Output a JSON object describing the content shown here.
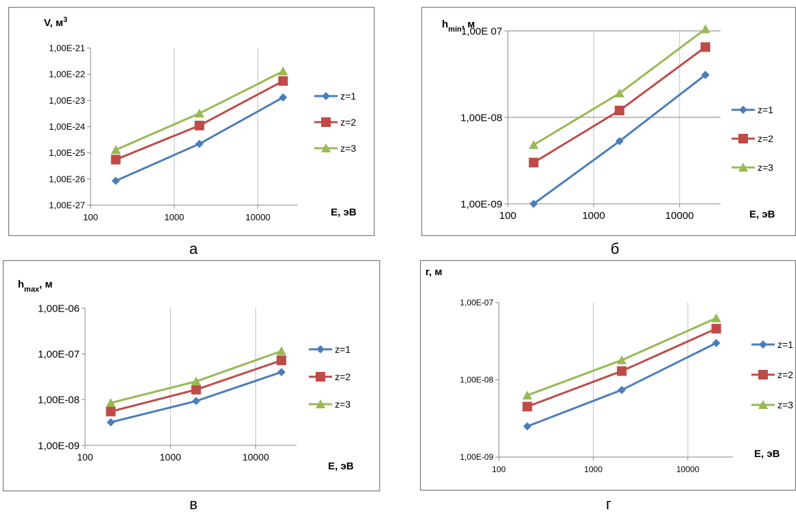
{
  "captions": [
    "а",
    "б",
    "в",
    "г"
  ],
  "chart_data": [
    {
      "type": "line",
      "ylabel_base": "V, м",
      "ylabel_sup": "3",
      "xlabel": "E, эВ",
      "xscale": "log",
      "yscale": "log",
      "xlim": [
        100,
        30000
      ],
      "ylim": [
        1e-27,
        1e-21
      ],
      "xticks": [
        {
          "v": 100,
          "label": "100"
        },
        {
          "v": 1000,
          "label": "1000"
        },
        {
          "v": 10000,
          "label": "10000"
        }
      ],
      "yticks": [
        {
          "v": 1e-27,
          "label": "1,00E-27"
        },
        {
          "v": 1e-26,
          "label": "1,00E-26"
        },
        {
          "v": 1e-25,
          "label": "1,00E-25"
        },
        {
          "v": 1e-24,
          "label": "1,00E-24"
        },
        {
          "v": 1e-23,
          "label": "1,00E-23"
        },
        {
          "v": 1e-22,
          "label": "1,00E-22"
        },
        {
          "v": 1e-21,
          "label": "1,00E-21"
        }
      ],
      "grid": "vertical",
      "legend_position": "right",
      "series": [
        {
          "name": "z=1",
          "color": "#4a7ebb",
          "marker": "diamond",
          "x": [
            200,
            2000,
            20000
          ],
          "y": [
            8.5e-27,
            2.2e-25,
            1.3e-23
          ]
        },
        {
          "name": "z=2",
          "color": "#be4b48",
          "marker": "square",
          "x": [
            200,
            2000,
            20000
          ],
          "y": [
            5.5e-26,
            1.1e-24,
            5.5e-23
          ]
        },
        {
          "name": "z=3",
          "color": "#98b954",
          "marker": "triangle",
          "x": [
            200,
            2000,
            20000
          ],
          "y": [
            1.3e-25,
            3.2e-24,
            1.3e-22
          ]
        }
      ]
    },
    {
      "type": "line",
      "ylabel_base": "h",
      "ylabel_sub": "min",
      "ylabel_tail": ", м",
      "xlabel": "E, эВ",
      "xscale": "log",
      "yscale": "log",
      "xlim": [
        100,
        30000
      ],
      "ylim": [
        1e-09,
        1e-07
      ],
      "xticks": [
        {
          "v": 100,
          "label": "100"
        },
        {
          "v": 1000,
          "label": "1000"
        },
        {
          "v": 10000,
          "label": "10000"
        }
      ],
      "yticks": [
        {
          "v": 1e-09,
          "label": "1,00E-09"
        },
        {
          "v": 1e-08,
          "label": "1,00E-08"
        },
        {
          "v": 1e-07,
          "label": "1,00E 07"
        }
      ],
      "grid": "both",
      "legend_position": "right",
      "series": [
        {
          "name": "z=1",
          "color": "#4a7ebb",
          "marker": "diamond",
          "x": [
            200,
            2000,
            20000
          ],
          "y": [
            1e-09,
            5.3e-09,
            3.1e-08
          ]
        },
        {
          "name": "z=2",
          "color": "#be4b48",
          "marker": "square",
          "x": [
            200,
            2000,
            20000
          ],
          "y": [
            3e-09,
            1.2e-08,
            6.5e-08
          ]
        },
        {
          "name": "z=3",
          "color": "#98b954",
          "marker": "triangle",
          "x": [
            200,
            2000,
            20000
          ],
          "y": [
            4.8e-09,
            1.9e-08,
            1.05e-07
          ]
        }
      ]
    },
    {
      "type": "line",
      "ylabel_base": "h",
      "ylabel_sub": "max",
      "ylabel_tail": ", м",
      "xlabel": "E, эВ",
      "xscale": "log",
      "yscale": "log",
      "xlim": [
        100,
        30000
      ],
      "ylim": [
        1e-09,
        1e-06
      ],
      "xticks": [
        {
          "v": 100,
          "label": "100"
        },
        {
          "v": 1000,
          "label": "1000"
        },
        {
          "v": 10000,
          "label": "10000"
        }
      ],
      "yticks": [
        {
          "v": 1e-09,
          "label": "1,00E-09"
        },
        {
          "v": 1e-08,
          "label": "1,00E-08"
        },
        {
          "v": 1e-07,
          "label": "1,00E-07"
        },
        {
          "v": 1e-06,
          "label": "1,00E-06"
        }
      ],
      "grid": "vertical",
      "legend_position": "right",
      "series": [
        {
          "name": "z=1",
          "color": "#4a7ebb",
          "marker": "diamond",
          "x": [
            200,
            2000,
            20000
          ],
          "y": [
            3.2e-09,
            9.3e-09,
            4e-08
          ]
        },
        {
          "name": "z=2",
          "color": "#be4b48",
          "marker": "square",
          "x": [
            200,
            2000,
            20000
          ],
          "y": [
            5.5e-09,
            1.65e-08,
            7.2e-08
          ]
        },
        {
          "name": "z=3",
          "color": "#98b954",
          "marker": "triangle",
          "x": [
            200,
            2000,
            20000
          ],
          "y": [
            8.5e-09,
            2.5e-08,
            1.15e-07
          ]
        }
      ]
    },
    {
      "type": "line",
      "ylabel_base": "r, м",
      "xlabel": "E, эВ",
      "xscale": "log",
      "yscale": "log",
      "xlim": [
        100,
        30000
      ],
      "ylim": [
        1e-09,
        1e-07
      ],
      "xticks": [
        {
          "v": 100,
          "label": "100"
        },
        {
          "v": 1000,
          "label": "1000"
        },
        {
          "v": 10000,
          "label": "10000"
        }
      ],
      "yticks": [
        {
          "v": 1e-09,
          "label": "1,00E-09"
        },
        {
          "v": 1e-08,
          "label": "1,00E-08"
        },
        {
          "v": 1e-07,
          "label": "1,00E-07"
        }
      ],
      "grid": "vertical",
      "legend_position": "right",
      "series": [
        {
          "name": "z=1",
          "color": "#4a7ebb",
          "marker": "diamond",
          "x": [
            200,
            2000,
            20000
          ],
          "y": [
            2.5e-09,
            7.4e-09,
            3e-08
          ]
        },
        {
          "name": "z=2",
          "color": "#be4b48",
          "marker": "square",
          "x": [
            200,
            2000,
            20000
          ],
          "y": [
            4.5e-09,
            1.3e-08,
            4.6e-08
          ]
        },
        {
          "name": "z=3",
          "color": "#98b954",
          "marker": "triangle",
          "x": [
            200,
            2000,
            20000
          ],
          "y": [
            6.3e-09,
            1.8e-08,
            6.3e-08
          ]
        }
      ]
    }
  ]
}
